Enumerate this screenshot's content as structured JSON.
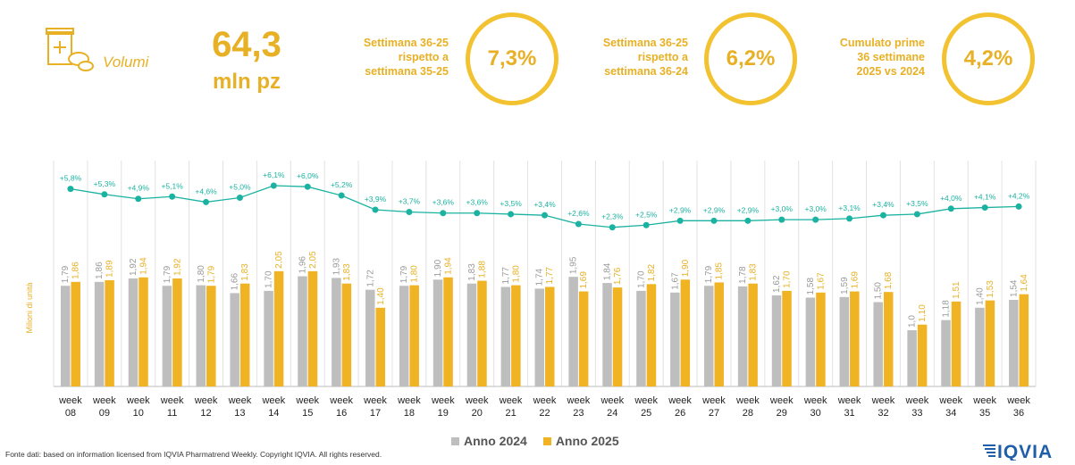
{
  "kpi": {
    "icon": "medicine-package-icon",
    "label": "Volumi",
    "value": "64,3",
    "unit": "mln pz"
  },
  "comparisons": [
    {
      "lines": [
        "Settimana 36-25",
        "rispetto a",
        "settimana 35-25"
      ],
      "value": "7,3%"
    },
    {
      "lines": [
        "Settimana 36-25",
        "rispetto a",
        "settimana 36-24"
      ],
      "value": "6,2%"
    },
    {
      "lines": [
        "Cumulato prime",
        "36 settimane",
        "2025 vs 2024"
      ],
      "value": "4,2%"
    }
  ],
  "chart_data": {
    "type": "bar",
    "ylabel": "Milioni di unità",
    "categories": [
      [
        "week",
        "08"
      ],
      [
        "week",
        "09"
      ],
      [
        "week",
        "10"
      ],
      [
        "week",
        "11"
      ],
      [
        "week",
        "12"
      ],
      [
        "week",
        "13"
      ],
      [
        "week",
        "14"
      ],
      [
        "week",
        "15"
      ],
      [
        "week",
        "16"
      ],
      [
        "week",
        "17"
      ],
      [
        "week",
        "18"
      ],
      [
        "week",
        "19"
      ],
      [
        "week",
        "20"
      ],
      [
        "week",
        "21"
      ],
      [
        "week",
        "22"
      ],
      [
        "week",
        "23"
      ],
      [
        "week",
        "24"
      ],
      [
        "week",
        "25"
      ],
      [
        "week",
        "26"
      ],
      [
        "week",
        "27"
      ],
      [
        "week",
        "28"
      ],
      [
        "week",
        "29"
      ],
      [
        "week",
        "30"
      ],
      [
        "week",
        "31"
      ],
      [
        "week",
        "32"
      ],
      [
        "week",
        "33"
      ],
      [
        "week",
        "34"
      ],
      [
        "week",
        "35"
      ],
      [
        "week",
        "36"
      ]
    ],
    "series": [
      {
        "name": "Anno 2024",
        "color": "#BEBEBE",
        "values": [
          1.79,
          1.86,
          1.92,
          1.79,
          1.8,
          1.66,
          1.7,
          1.96,
          1.93,
          1.72,
          1.79,
          1.9,
          1.83,
          1.77,
          1.74,
          1.95,
          1.84,
          1.7,
          1.67,
          1.79,
          1.78,
          1.62,
          1.58,
          1.59,
          1.5,
          1.0,
          1.18,
          1.4,
          1.54
        ],
        "labels": [
          "1,79",
          "1,86",
          "1,92",
          "1,79",
          "1,80",
          "1,66",
          "1,70",
          "1,96",
          "1,93",
          "1,72",
          "1,79",
          "1,90",
          "1,83",
          "1,77",
          "1,74",
          "1,95",
          "1,84",
          "1,70",
          "1,67",
          "1,79",
          "1,78",
          "1,62",
          "1,58",
          "1,59",
          "1,50",
          "1,0",
          "1,18",
          "1,40",
          "1,54"
        ]
      },
      {
        "name": "Anno 2025",
        "color": "#F0B323",
        "values": [
          1.86,
          1.89,
          1.94,
          1.92,
          1.79,
          1.83,
          2.05,
          2.05,
          1.83,
          1.4,
          1.8,
          1.94,
          1.88,
          1.8,
          1.77,
          1.69,
          1.76,
          1.82,
          1.9,
          1.85,
          1.83,
          1.7,
          1.67,
          1.69,
          1.68,
          1.1,
          1.51,
          1.53,
          1.64
        ],
        "labels": [
          "1,86",
          "1,89",
          "1,94",
          "1,92",
          "1,79",
          "1,83",
          "2,05",
          "2,05",
          "1,83",
          "1,40",
          "1,80",
          "1,94",
          "1,88",
          "1,80",
          "1,77",
          "1,69",
          "1,76",
          "1,82",
          "1,90",
          "1,85",
          "1,83",
          "1,70",
          "1,67",
          "1,69",
          "1,68",
          "1,10",
          "1,51",
          "1,53",
          "1,64"
        ]
      }
    ],
    "cumulative_growth": {
      "color": "#1AB2A0",
      "values": [
        5.8,
        5.3,
        4.9,
        5.1,
        4.6,
        5.0,
        6.1,
        6.0,
        5.2,
        3.9,
        3.7,
        3.6,
        3.6,
        3.5,
        3.4,
        2.6,
        2.3,
        2.5,
        2.9,
        2.9,
        2.9,
        3.0,
        3.0,
        3.1,
        3.4,
        3.5,
        4.0,
        4.1,
        4.2
      ],
      "labels": [
        "+5,8%",
        "+5,3%",
        "+4,9%",
        "+5,1%",
        "+4,6%",
        "+5,0%",
        "+6,1%",
        "+6,0%",
        "+5,2%",
        "+3,9%",
        "+3,7%",
        "+3,6%",
        "+3,6%",
        "+3,5%",
        "+3,4%",
        "+2,6%",
        "+2,3%",
        "+2,5%",
        "+2,9%",
        "+2,9%",
        "+2,9%",
        "+3,0%",
        "+3,0%",
        "+3,1%",
        "+3,4%",
        "+3,5%",
        "+4,0%",
        "+4,1%",
        "+4,2%"
      ]
    },
    "ylim": [
      0,
      2.1
    ],
    "grid": "vertical-separators",
    "legend_position": "bottom"
  },
  "footnote": "Fonte dati: based on information licensed from IQVIA Pharmatrend Weekly. Copyright IQVIA. All rights reserved.",
  "logo": {
    "text": "IQVIA",
    "color": "#1F5FA8"
  }
}
